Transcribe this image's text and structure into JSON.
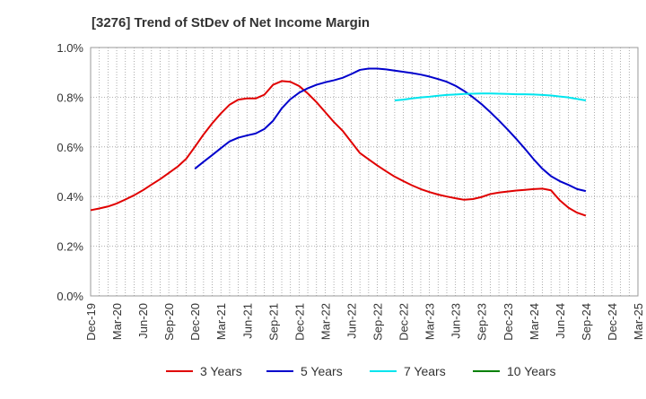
{
  "chart_data": {
    "type": "line",
    "title": "[3276]  Trend of StDev of Net Income Margin",
    "x_tick_labels": [
      "Dec-19",
      "Mar-20",
      "Jun-20",
      "Sep-20",
      "Dec-20",
      "Mar-21",
      "Jun-21",
      "Sep-21",
      "Dec-21",
      "Mar-22",
      "Jun-22",
      "Sep-22",
      "Dec-22",
      "Mar-23",
      "Jun-23",
      "Sep-23",
      "Dec-23",
      "Mar-24",
      "Jun-24",
      "Sep-24",
      "Dec-24",
      "Mar-25"
    ],
    "y_tick_labels": [
      "0.0%",
      "0.2%",
      "0.4%",
      "0.6%",
      "0.8%",
      "1.0%"
    ],
    "ylim": [
      0,
      1.0
    ],
    "y_unit": "%",
    "grid": true,
    "legend_position": "bottom",
    "series": [
      {
        "name": "3 Years",
        "color": "#e00000",
        "points": [
          [
            "Dec-19",
            0.345
          ],
          [
            "Jan-20",
            0.352
          ],
          [
            "Feb-20",
            0.36
          ],
          [
            "Mar-20",
            0.372
          ],
          [
            "Apr-20",
            0.388
          ],
          [
            "May-20",
            0.405
          ],
          [
            "Jun-20",
            0.425
          ],
          [
            "Jul-20",
            0.448
          ],
          [
            "Aug-20",
            0.47
          ],
          [
            "Sep-20",
            0.495
          ],
          [
            "Oct-20",
            0.52
          ],
          [
            "Nov-20",
            0.552
          ],
          [
            "Dec-20",
            0.6
          ],
          [
            "Jan-21",
            0.65
          ],
          [
            "Feb-21",
            0.695
          ],
          [
            "Mar-21",
            0.735
          ],
          [
            "Apr-21",
            0.77
          ],
          [
            "May-21",
            0.79
          ],
          [
            "Jun-21",
            0.795
          ],
          [
            "Jul-21",
            0.795
          ],
          [
            "Aug-21",
            0.81
          ],
          [
            "Sep-21",
            0.85
          ],
          [
            "Oct-21",
            0.865
          ],
          [
            "Nov-21",
            0.862
          ],
          [
            "Dec-21",
            0.845
          ],
          [
            "Jan-22",
            0.815
          ],
          [
            "Feb-22",
            0.78
          ],
          [
            "Mar-22",
            0.74
          ],
          [
            "Apr-22",
            0.7
          ],
          [
            "May-22",
            0.665
          ],
          [
            "Jun-22",
            0.62
          ],
          [
            "Jul-22",
            0.575
          ],
          [
            "Aug-22",
            0.55
          ],
          [
            "Sep-22",
            0.525
          ],
          [
            "Oct-22",
            0.502
          ],
          [
            "Nov-22",
            0.48
          ],
          [
            "Dec-22",
            0.462
          ],
          [
            "Jan-23",
            0.445
          ],
          [
            "Feb-23",
            0.43
          ],
          [
            "Mar-23",
            0.418
          ],
          [
            "Apr-23",
            0.408
          ],
          [
            "May-23",
            0.4
          ],
          [
            "Jun-23",
            0.393
          ],
          [
            "Jul-23",
            0.387
          ],
          [
            "Aug-23",
            0.39
          ],
          [
            "Sep-23",
            0.398
          ],
          [
            "Oct-23",
            0.41
          ],
          [
            "Nov-23",
            0.416
          ],
          [
            "Dec-23",
            0.42
          ],
          [
            "Jan-24",
            0.424
          ],
          [
            "Feb-24",
            0.427
          ],
          [
            "Mar-24",
            0.43
          ],
          [
            "Apr-24",
            0.432
          ],
          [
            "May-24",
            0.425
          ],
          [
            "Jun-24",
            0.385
          ],
          [
            "Jul-24",
            0.355
          ],
          [
            "Aug-24",
            0.335
          ],
          [
            "Sep-24",
            0.323
          ]
        ]
      },
      {
        "name": "5 Years",
        "color": "#0000cc",
        "points": [
          [
            "Dec-20",
            0.512
          ],
          [
            "Jan-21",
            0.54
          ],
          [
            "Feb-21",
            0.567
          ],
          [
            "Mar-21",
            0.595
          ],
          [
            "Apr-21",
            0.622
          ],
          [
            "May-21",
            0.637
          ],
          [
            "Jun-21",
            0.646
          ],
          [
            "Jul-21",
            0.654
          ],
          [
            "Aug-21",
            0.672
          ],
          [
            "Sep-21",
            0.705
          ],
          [
            "Oct-21",
            0.755
          ],
          [
            "Nov-21",
            0.792
          ],
          [
            "Dec-21",
            0.818
          ],
          [
            "Jan-22",
            0.836
          ],
          [
            "Feb-22",
            0.85
          ],
          [
            "Mar-22",
            0.86
          ],
          [
            "Apr-22",
            0.868
          ],
          [
            "May-22",
            0.878
          ],
          [
            "Jun-22",
            0.893
          ],
          [
            "Jul-22",
            0.91
          ],
          [
            "Aug-22",
            0.915
          ],
          [
            "Sep-22",
            0.915
          ],
          [
            "Oct-22",
            0.912
          ],
          [
            "Nov-22",
            0.907
          ],
          [
            "Dec-22",
            0.902
          ],
          [
            "Jan-23",
            0.897
          ],
          [
            "Feb-23",
            0.891
          ],
          [
            "Mar-23",
            0.883
          ],
          [
            "Apr-23",
            0.873
          ],
          [
            "May-23",
            0.862
          ],
          [
            "Jun-23",
            0.846
          ],
          [
            "Jul-23",
            0.825
          ],
          [
            "Aug-23",
            0.8
          ],
          [
            "Sep-23",
            0.772
          ],
          [
            "Oct-23",
            0.74
          ],
          [
            "Nov-23",
            0.706
          ],
          [
            "Dec-23",
            0.67
          ],
          [
            "Jan-24",
            0.632
          ],
          [
            "Feb-24",
            0.592
          ],
          [
            "Mar-24",
            0.55
          ],
          [
            "Apr-24",
            0.512
          ],
          [
            "May-24",
            0.482
          ],
          [
            "Jun-24",
            0.462
          ],
          [
            "Jul-24",
            0.447
          ],
          [
            "Aug-24",
            0.43
          ],
          [
            "Sep-24",
            0.422
          ]
        ]
      },
      {
        "name": "7 Years",
        "color": "#00e5ee",
        "points": [
          [
            "Nov-22",
            0.787
          ],
          [
            "Dec-22",
            0.79
          ],
          [
            "Jan-23",
            0.795
          ],
          [
            "Feb-23",
            0.799
          ],
          [
            "Mar-23",
            0.802
          ],
          [
            "Apr-23",
            0.806
          ],
          [
            "May-23",
            0.809
          ],
          [
            "Jun-23",
            0.811
          ],
          [
            "Jul-23",
            0.813
          ],
          [
            "Aug-23",
            0.814
          ],
          [
            "Sep-23",
            0.815
          ],
          [
            "Oct-23",
            0.815
          ],
          [
            "Nov-23",
            0.814
          ],
          [
            "Dec-23",
            0.813
          ],
          [
            "Jan-24",
            0.812
          ],
          [
            "Feb-24",
            0.812
          ],
          [
            "Mar-24",
            0.811
          ],
          [
            "Apr-24",
            0.809
          ],
          [
            "May-24",
            0.807
          ],
          [
            "Jun-24",
            0.803
          ],
          [
            "Jul-24",
            0.799
          ],
          [
            "Aug-24",
            0.793
          ],
          [
            "Sep-24",
            0.787
          ]
        ]
      },
      {
        "name": "10 Years",
        "color": "#008000",
        "points": []
      }
    ]
  }
}
